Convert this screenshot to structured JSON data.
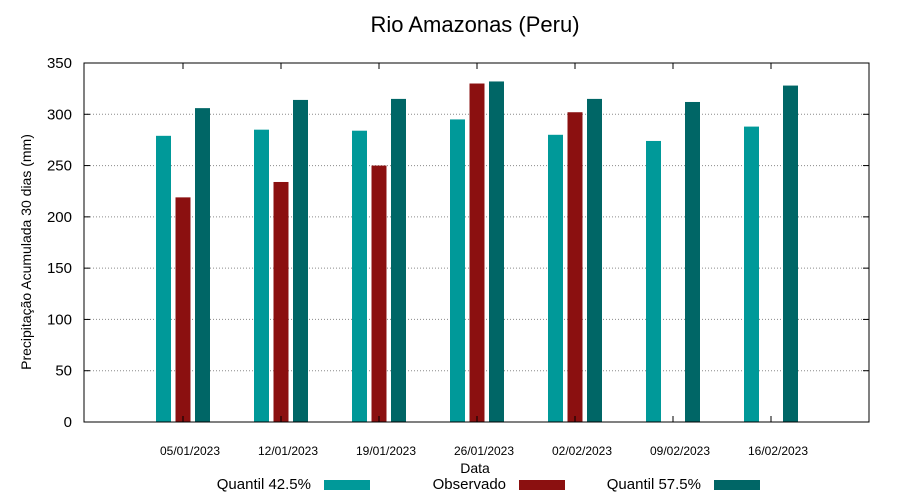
{
  "chart_data": {
    "type": "bar",
    "title": "Rio Amazonas (Peru)",
    "xlabel": "Data",
    "ylabel": "Precipitação Acumulada 30 dias (mm)",
    "ylim": [
      0,
      350
    ],
    "yticks": [
      0,
      50,
      100,
      150,
      200,
      250,
      300,
      350
    ],
    "grid": true,
    "legend_position": "bottom",
    "categories": [
      "05/01/2023",
      "12/01/2023",
      "19/01/2023",
      "26/01/2023",
      "02/02/2023",
      "09/02/2023",
      "16/02/2023"
    ],
    "series": [
      {
        "name": "Quantil 42.5%",
        "color": "#009999",
        "values": [
          279,
          285,
          284,
          295,
          280,
          274,
          288
        ]
      },
      {
        "name": "Observado",
        "color": "#8b1010",
        "values": [
          219,
          234,
          250,
          330,
          302,
          null,
          null
        ]
      },
      {
        "name": "Quantil 57.5%",
        "color": "#006666",
        "values": [
          306,
          314,
          315,
          332,
          315,
          312,
          328
        ]
      }
    ]
  }
}
